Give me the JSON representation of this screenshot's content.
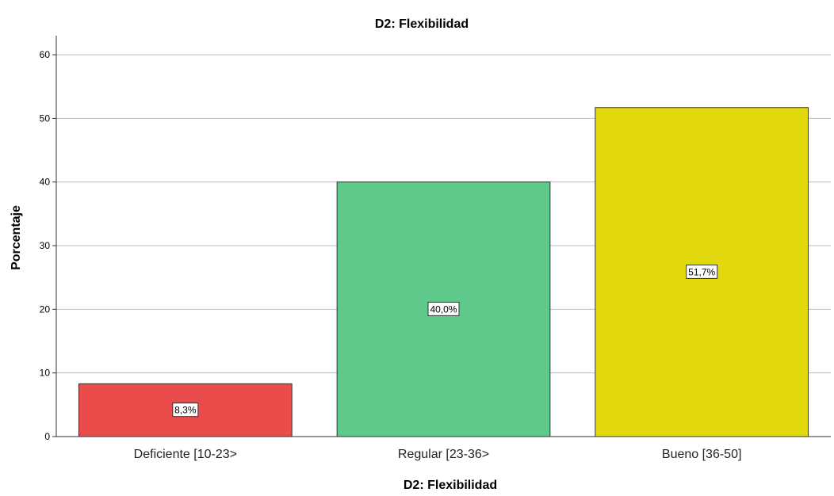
{
  "chart_data": {
    "type": "bar",
    "title": "D2: Flexibilidad",
    "xlabel": "D2: Flexibilidad",
    "ylabel": "Porcentaje",
    "categories": [
      "Deficiente [10-23>",
      "Regular [23-36>",
      "Bueno [36-50]"
    ],
    "values": [
      8.3,
      40.0,
      51.7
    ],
    "data_labels": [
      "8,3%",
      "40,0%",
      "51,7%"
    ],
    "colors": [
      "#ea4b4b",
      "#5ec98a",
      "#e2d80e"
    ],
    "ylim": [
      0,
      63
    ],
    "yticks": [
      0,
      10,
      20,
      30,
      40,
      50,
      60
    ],
    "grid": true,
    "legend": "none"
  }
}
